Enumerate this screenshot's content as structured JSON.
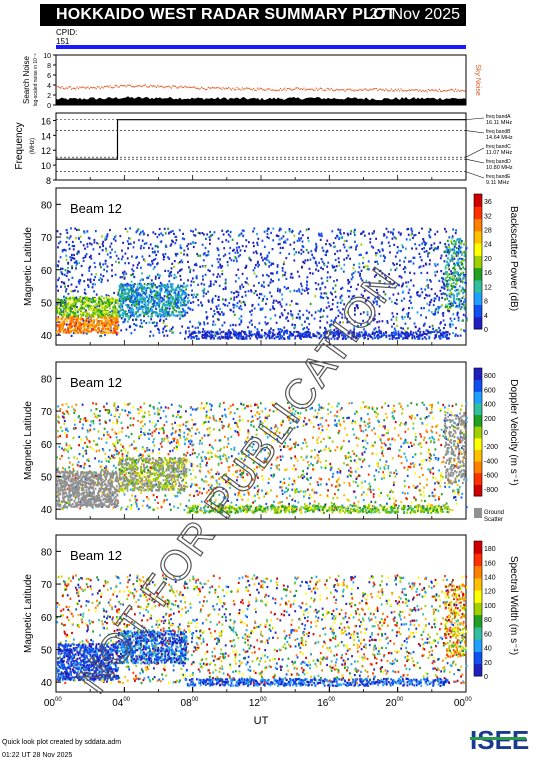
{
  "header": {
    "title": "HOKKAIDO WEST RADAR SUMMARY PLOT",
    "date": "27 Nov 2025"
  },
  "cpid": {
    "label": "CPID:",
    "value": "151",
    "color": "#1a1aff"
  },
  "watermark": "NOT FOR PUBLICATION",
  "footer": {
    "line1": "Quick look plot created by sddata.adm",
    "line2": "01:22 UT 28 Nov 2025"
  },
  "logo": {
    "text": "ISEE"
  },
  "colors": {
    "noise_search": "#000000",
    "noise_sky": "#e05a20",
    "ground_scatter": "#909090"
  },
  "chart_data": [
    {
      "type": "area",
      "ylabel": "Search Noise",
      "ylabel_sub": "log-scaled noise in 10⁻ⁿ",
      "ylim": [
        0,
        10
      ],
      "yticks": [
        "0",
        "2",
        "4",
        "6",
        "8",
        "10"
      ],
      "right_label": "Sky Noise",
      "x": [
        0,
        1,
        2,
        3,
        4,
        5,
        6,
        7,
        8,
        9,
        10,
        11,
        12,
        13,
        14,
        15,
        16,
        17,
        18,
        19,
        20,
        21,
        22,
        23,
        24
      ],
      "search_noise": [
        1.2,
        1.2,
        1.3,
        1.3,
        1.5,
        1.4,
        1.4,
        1.4,
        1.3,
        1.3,
        1.3,
        1.3,
        1.2,
        1.3,
        1.3,
        1.4,
        1.3,
        1.3,
        1.3,
        1.2,
        1.3,
        1.3,
        1.3,
        1.3,
        1.3
      ],
      "sky_noise": [
        3.6,
        3.5,
        3.5,
        3.7,
        3.9,
        4.0,
        3.8,
        3.7,
        3.6,
        3.4,
        3.4,
        3.3,
        3.3,
        3.2,
        3.4,
        3.3,
        3.2,
        3.1,
        3.1,
        3.2,
        3.1,
        3.0,
        3.0,
        3.1,
        3.1
      ]
    },
    {
      "type": "line",
      "ylabel": "Frequency",
      "ylabel_unit": "(MHz)",
      "ylim": [
        8,
        17
      ],
      "yticks": [
        "8",
        "10",
        "12",
        "14",
        "16"
      ],
      "x": [
        0,
        3.6,
        3.6,
        24
      ],
      "y": [
        10.8,
        10.8,
        16.1,
        16.1
      ],
      "bands": [
        {
          "label": "freq bandA",
          "value": "16.11 MHz",
          "y": 16.11
        },
        {
          "label": "freq bandB",
          "value": "14.64 MHz",
          "y": 14.64
        },
        {
          "label": "freq bandC",
          "value": "11.07 MHz",
          "y": 11.07
        },
        {
          "label": "freq bandD",
          "value": "10.80 MHz",
          "y": 10.8
        },
        {
          "label": "freq bandE",
          "value": "9.11 MHz",
          "y": 9.11
        }
      ]
    },
    {
      "type": "heatmap",
      "beam": "Beam 12",
      "ylabel": "Magnetic Latitude",
      "ylim": [
        37,
        85
      ],
      "yticks": [
        "40",
        "50",
        "60",
        "70",
        "80"
      ],
      "cbar_label": "Backscatter Power (dB)",
      "cbar_ticks": [
        "0",
        "4",
        "8",
        "12",
        "16",
        "20",
        "24",
        "28",
        "32",
        "36"
      ],
      "cbar_range": [
        0,
        38
      ],
      "cbar_colors": [
        "#2020c0",
        "#1050f0",
        "#20a0ff",
        "#30c0a0",
        "#20a020",
        "#a0d000",
        "#ffff00",
        "#ffc000",
        "#ff8000",
        "#ff3000",
        "#d00000"
      ]
    },
    {
      "type": "heatmap",
      "beam": "Beam 12",
      "ylabel": "Magnetic Latitude",
      "ylim": [
        37,
        85
      ],
      "yticks": [
        "40",
        "50",
        "60",
        "70",
        "80"
      ],
      "cbar_label": "Doppler Velocity (m s⁻¹)",
      "cbar_ticks": [
        "-800",
        "-600",
        "-400",
        "-200",
        "0",
        "200",
        "400",
        "600",
        "800"
      ],
      "cbar_range": [
        -900,
        900
      ],
      "cbar_colors": [
        "#d00000",
        "#ff3000",
        "#ff8000",
        "#ffc000",
        "#ffff00",
        "#a0d000",
        "#20a020",
        "#30c0a0",
        "#20a0ff",
        "#1050f0",
        "#2020c0"
      ],
      "ground_label": "Ground Scatter"
    },
    {
      "type": "heatmap",
      "beam": "Beam 12",
      "ylabel": "Magnetic Latitude",
      "ylim": [
        37,
        85
      ],
      "yticks": [
        "40",
        "50",
        "60",
        "70",
        "80"
      ],
      "xlabel": "UT",
      "xticks": [
        "00",
        "04",
        "08",
        "12",
        "16",
        "20",
        "00"
      ],
      "xtick_sup": "00",
      "cbar_label": "Spectral Width (m s⁻¹)",
      "cbar_ticks": [
        "0",
        "20",
        "40",
        "60",
        "80",
        "100",
        "120",
        "140",
        "160",
        "180"
      ],
      "cbar_range": [
        0,
        190
      ],
      "cbar_colors": [
        "#2020c0",
        "#1050f0",
        "#20a0ff",
        "#30c0a0",
        "#20a020",
        "#a0d000",
        "#ffff00",
        "#ffc000",
        "#ff8000",
        "#ff3000",
        "#d00000"
      ]
    }
  ]
}
